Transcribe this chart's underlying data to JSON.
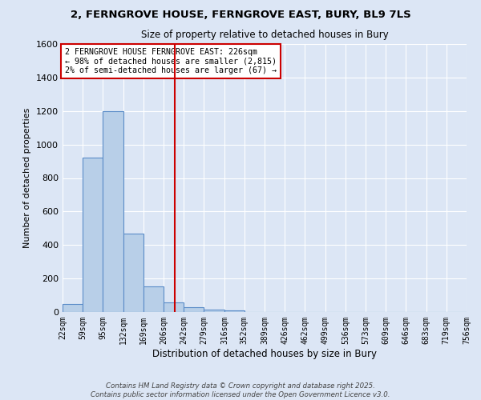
{
  "title": "2, FERNGROVE HOUSE, FERNGROVE EAST, BURY, BL9 7LS",
  "subtitle": "Size of property relative to detached houses in Bury",
  "xlabel": "Distribution of detached houses by size in Bury",
  "ylabel": "Number of detached properties",
  "bin_labels": [
    "22sqm",
    "59sqm",
    "95sqm",
    "132sqm",
    "169sqm",
    "206sqm",
    "242sqm",
    "279sqm",
    "316sqm",
    "352sqm",
    "389sqm",
    "426sqm",
    "462sqm",
    "499sqm",
    "536sqm",
    "573sqm",
    "609sqm",
    "646sqm",
    "683sqm",
    "719sqm",
    "756sqm"
  ],
  "bin_edges": [
    22,
    59,
    95,
    132,
    169,
    206,
    242,
    279,
    316,
    352,
    389,
    426,
    462,
    499,
    536,
    573,
    609,
    646,
    683,
    719,
    756
  ],
  "bar_values": [
    50,
    920,
    1200,
    470,
    155,
    55,
    30,
    12,
    10,
    0,
    0,
    0,
    0,
    0,
    0,
    0,
    0,
    0,
    0,
    0
  ],
  "bar_color": "#b8cfe8",
  "bar_edge_color": "#5b8cc8",
  "fig_bg_color": "#dce6f5",
  "axes_bg_color": "#dce6f5",
  "grid_color": "#ffffff",
  "vline_x": 226,
  "vline_color": "#cc0000",
  "ylim": [
    0,
    1600
  ],
  "yticks": [
    0,
    200,
    400,
    600,
    800,
    1000,
    1200,
    1400,
    1600
  ],
  "annotation_text": "2 FERNGROVE HOUSE FERNGROVE EAST: 226sqm\n← 98% of detached houses are smaller (2,815)\n2% of semi-detached houses are larger (67) →",
  "annotation_box_color": "#ffffff",
  "annotation_border_color": "#cc0000",
  "footnote1": "Contains HM Land Registry data © Crown copyright and database right 2025.",
  "footnote2": "Contains public sector information licensed under the Open Government Licence v3.0."
}
